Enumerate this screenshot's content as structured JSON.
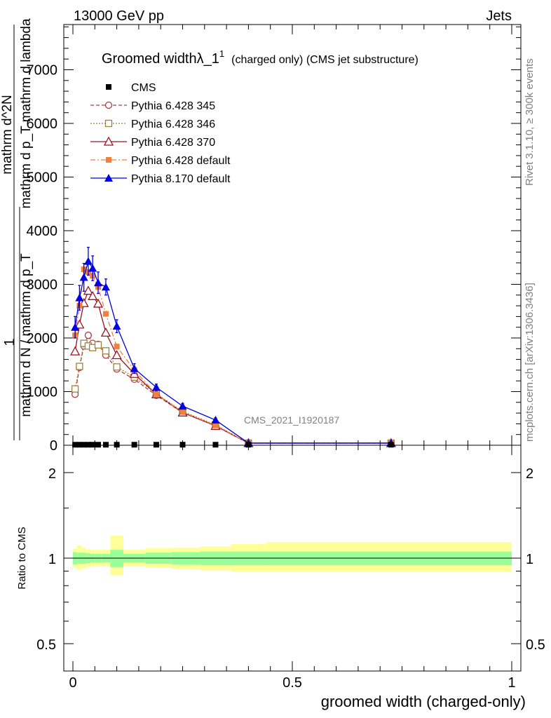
{
  "header": {
    "left": "13000 GeV pp",
    "right": "Jets"
  },
  "side_labels": {
    "rivet": "Rivet 3.1.10, ≥ 300k events",
    "mcplots": "mcplots.cern.ch [arXiv:1306.3436]"
  },
  "watermark": "CMS_2021_I1920187",
  "chart_data": [
    {
      "type": "line",
      "title": "Groomed widthλ_1¹ (charged only) (CMS jet substructure)",
      "title_main": "Groomed widthλ_1",
      "title_sup": "1",
      "title_rest": "(charged only) (CMS jet substructure)",
      "ylabel_parts": {
        "one": "1",
        "denominator": "mathrm d N / mathrm d p_T",
        "numerator": "mathrm d^2N",
        "numerator_sub": "mathrm d p_T mathrm d lambda"
      },
      "xlim": [
        0,
        1
      ],
      "ylim": [
        0,
        8000
      ],
      "y_ticks": [
        0,
        1000,
        2000,
        3000,
        4000,
        5000,
        6000,
        7000
      ],
      "y_tick_labels": [
        "0",
        "1000",
        "2000",
        "3000",
        "4000",
        "5000",
        "6000",
        "7000"
      ],
      "legend_position": "top-left",
      "series": [
        {
          "name": "CMS",
          "style": "data",
          "color": "#000000",
          "marker": "square",
          "x": [
            0.005,
            0.015,
            0.025,
            0.035,
            0.045,
            0.0575,
            0.075,
            0.1,
            0.14,
            0.19,
            0.25,
            0.325,
            0.4,
            0.725
          ],
          "y": [
            10,
            10,
            10,
            10,
            10,
            10,
            10,
            10,
            10,
            10,
            10,
            10,
            10,
            10
          ]
        },
        {
          "name": "Pythia 6.428 345",
          "style": "dashed",
          "color": "#b03a48",
          "marker": "circle-open",
          "x": [
            0.005,
            0.015,
            0.025,
            0.035,
            0.045,
            0.0575,
            0.075,
            0.1,
            0.14,
            0.19,
            0.25,
            0.325,
            0.4,
            0.725
          ],
          "y": [
            950,
            1450,
            1850,
            2050,
            1900,
            1880,
            1680,
            1420,
            1230,
            930,
            610,
            360,
            40,
            40
          ]
        },
        {
          "name": "Pythia 6.428 346",
          "style": "dotted",
          "color": "#a08040",
          "marker": "square-open",
          "x": [
            0.005,
            0.015,
            0.025,
            0.035,
            0.045,
            0.0575,
            0.075,
            0.1,
            0.14,
            0.19,
            0.25,
            0.325,
            0.4,
            0.725
          ],
          "y": [
            1050,
            1470,
            1900,
            1850,
            1820,
            1870,
            1760,
            1460,
            1270,
            960,
            630,
            380,
            40,
            40
          ]
        },
        {
          "name": "Pythia 6.428 370",
          "style": "solid",
          "color": "#a01020",
          "marker": "triangle-open",
          "x": [
            0.005,
            0.015,
            0.025,
            0.035,
            0.045,
            0.0575,
            0.075,
            0.1,
            0.14,
            0.19,
            0.25,
            0.325,
            0.4,
            0.725
          ],
          "y": [
            1750,
            2250,
            2650,
            2880,
            2780,
            2640,
            2100,
            1680,
            1330,
            950,
            610,
            360,
            40,
            40
          ]
        },
        {
          "name": "Pythia 6.428 default",
          "style": "dashdot",
          "color": "#f08040",
          "marker": "square-filled",
          "x": [
            0.005,
            0.015,
            0.025,
            0.035,
            0.045,
            0.0575,
            0.075,
            0.1,
            0.14,
            0.19,
            0.25,
            0.325,
            0.4,
            0.725
          ],
          "y": [
            2050,
            2600,
            3280,
            3230,
            3160,
            2950,
            2450,
            1840,
            1400,
            950,
            620,
            370,
            40,
            40
          ]
        },
        {
          "name": "Pythia 8.170 default",
          "style": "solid",
          "color": "#0000e0",
          "marker": "triangle-filled",
          "x": [
            0.005,
            0.015,
            0.025,
            0.035,
            0.045,
            0.0575,
            0.075,
            0.1,
            0.14,
            0.19,
            0.25,
            0.325,
            0.4,
            0.725
          ],
          "y": [
            2200,
            2750,
            3130,
            3430,
            3300,
            3030,
            2950,
            2220,
            1430,
            1080,
            730,
            470,
            40,
            40
          ],
          "errors": [
            200,
            230,
            260,
            260,
            230,
            200,
            150,
            120,
            90,
            60,
            50,
            40,
            20,
            10
          ]
        }
      ]
    },
    {
      "type": "area",
      "ylabel": "Ratio to CMS",
      "xlabel": "groomed width (charged-only)",
      "xlim": [
        0,
        1
      ],
      "ylim": [
        0.4,
        2.3
      ],
      "y_scale": "log",
      "y_ticks": [
        0.5,
        1,
        2
      ],
      "y_tick_labels": [
        "0.5",
        "1",
        "2"
      ],
      "x_ticks": [
        0,
        0.5,
        1
      ],
      "x_tick_labels": [
        "0",
        "0.5",
        "1"
      ],
      "reference_line": 1,
      "bands": {
        "edges": [
          0,
          0.01,
          0.02,
          0.03,
          0.04,
          0.05,
          0.065,
          0.085,
          0.095,
          0.115,
          0.13,
          0.165,
          0.225,
          0.29,
          0.36,
          0.44,
          1.0
        ],
        "inner_color": "#99ff99",
        "outer_color": "#ffff99",
        "inner_lo": [
          0.95,
          0.955,
          0.955,
          0.96,
          0.965,
          0.965,
          0.965,
          0.93,
          0.93,
          0.965,
          0.965,
          0.955,
          0.95,
          0.945,
          0.945,
          0.945
        ],
        "inner_hi": [
          1.05,
          1.045,
          1.045,
          1.04,
          1.035,
          1.035,
          1.035,
          1.07,
          1.07,
          1.035,
          1.035,
          1.045,
          1.05,
          1.055,
          1.055,
          1.055
        ],
        "outer_lo": [
          0.93,
          0.91,
          0.92,
          0.93,
          0.935,
          0.935,
          0.935,
          0.87,
          0.87,
          0.935,
          0.935,
          0.925,
          0.915,
          0.905,
          0.895,
          0.895
        ],
        "outer_hi": [
          1.08,
          1.11,
          1.09,
          1.075,
          1.07,
          1.07,
          1.07,
          1.2,
          1.2,
          1.07,
          1.07,
          1.085,
          1.09,
          1.1,
          1.12,
          1.14
        ]
      }
    }
  ]
}
